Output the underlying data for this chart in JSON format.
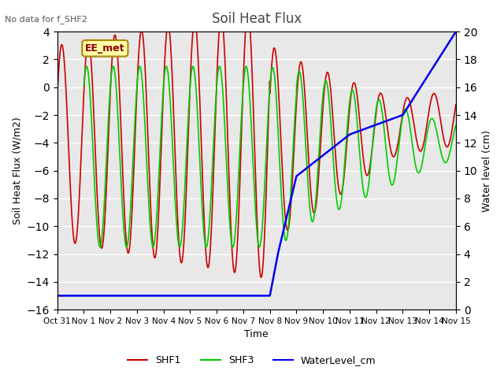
{
  "title": "Soil Heat Flux",
  "subtitle": "No data for f_SHF2",
  "ylabel_left": "Soil Heat Flux (W/m2)",
  "ylabel_right": "Water level (cm)",
  "xlabel": "Time",
  "ylim_left": [
    -16,
    4
  ],
  "ylim_right": [
    0,
    20
  ],
  "xtick_labels": [
    "Oct 31",
    "Nov 1",
    "Nov 2",
    "Nov 3",
    "Nov 4",
    "Nov 5",
    "Nov 6",
    "Nov 7",
    "Nov 8",
    "Nov 9",
    "Nov 10",
    "Nov 11",
    "Nov 12",
    "Nov 13",
    "Nov 14",
    "Nov 15"
  ],
  "bg_color": "#e8e8e8",
  "plot_bg_color": "#e8e8e8",
  "grid_color": "white",
  "SHF1_color": "#cc0000",
  "SHF3_color": "#00cc00",
  "WL_color": "#0000ee",
  "station_label": "EE_met",
  "station_box_color": "#ffffaa",
  "station_border_color": "#aa8800"
}
